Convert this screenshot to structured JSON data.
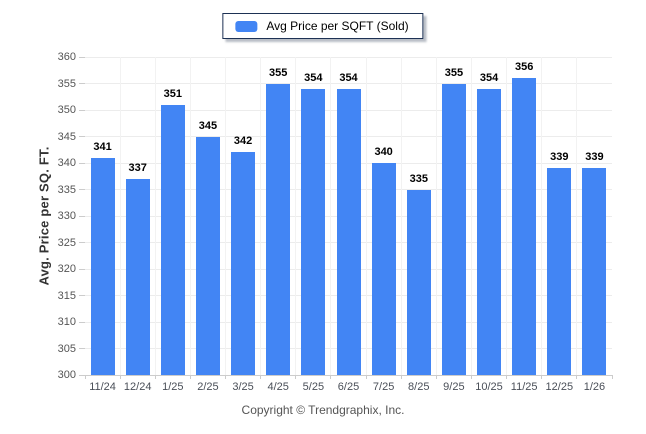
{
  "legend": {
    "label": "Avg Price per SQFT (Sold)",
    "swatch_color": "#4285f4"
  },
  "footer": {
    "copyright": "Copyright © Trendgraphix, Inc."
  },
  "chart_data": {
    "type": "bar",
    "title": "",
    "legend_entries": [
      "Avg Price per SQFT (Sold)"
    ],
    "legend_position": "top",
    "categories": [
      "11/24",
      "12/24",
      "1/25",
      "2/25",
      "3/25",
      "4/25",
      "5/25",
      "6/25",
      "7/25",
      "8/25",
      "9/25",
      "10/25",
      "11/25",
      "12/25",
      "1/26"
    ],
    "values": [
      341,
      337,
      351,
      345,
      342,
      355,
      354,
      354,
      340,
      335,
      355,
      354,
      356,
      339,
      339
    ],
    "xlabel": "",
    "ylabel": "Avg. Price per SQ. FT.",
    "ylim": [
      300,
      360
    ],
    "ytick_step": 5,
    "bar_color": "#4285f4",
    "grid": true,
    "colors": {
      "gridline": "#ececec",
      "axis": "#cccccc",
      "tick_label": "#555555",
      "value_label": "#000000"
    }
  }
}
